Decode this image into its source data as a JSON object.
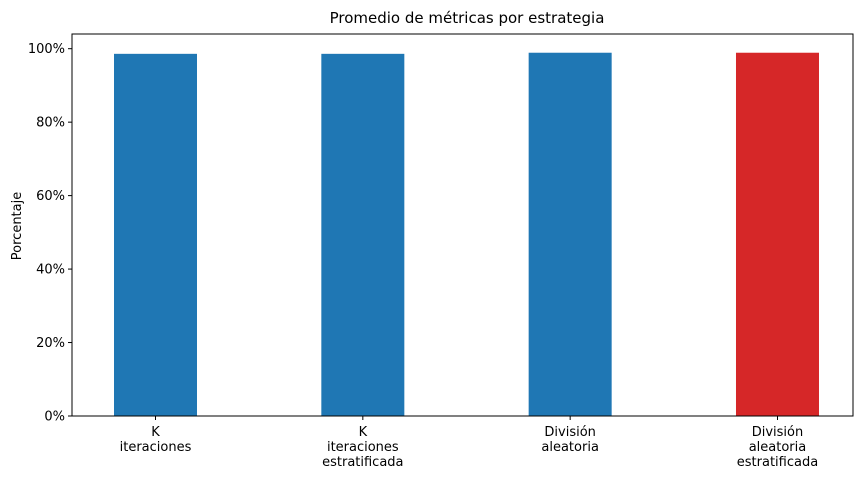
{
  "chart_data": {
    "type": "bar",
    "title": "Promedio de métricas por estrategia",
    "xlabel": "",
    "ylabel": "Porcentaje",
    "categories": [
      [
        "K",
        "iteraciones"
      ],
      [
        "K",
        "iteraciones",
        "estratificada"
      ],
      [
        "División",
        "aleatoria"
      ],
      [
        "División",
        "aleatoria",
        "estratificada"
      ]
    ],
    "values": [
      98.6,
      98.6,
      98.9,
      98.9
    ],
    "unit": "%",
    "ylim": [
      0,
      104
    ],
    "yticks": [
      0,
      20,
      40,
      60,
      80,
      100
    ],
    "ytick_labels": [
      "0%",
      "20%",
      "40%",
      "60%",
      "80%",
      "100%"
    ],
    "grid": false,
    "colors": [
      "#1f77b4",
      "#1f77b4",
      "#1f77b4",
      "#d62728"
    ]
  }
}
